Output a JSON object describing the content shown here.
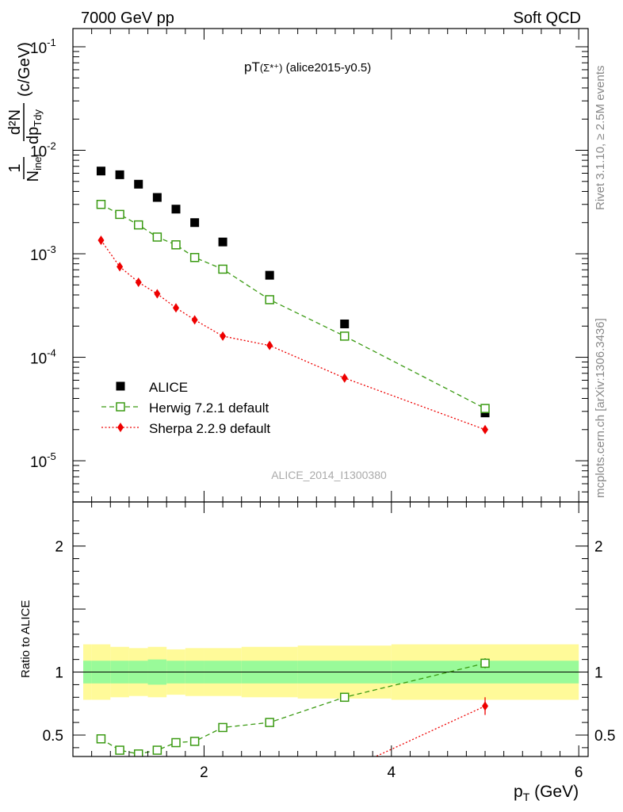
{
  "header": {
    "energy_label": "7000 GeV pp",
    "category_label": "Soft QCD",
    "plot_title_main": "pT",
    "plot_title_particle": "(Σ*⁺)",
    "plot_title_ref": " (alice2015-y0.5)",
    "rivet_label": "Rivet 3.1.10, ≥ 2.5M events",
    "mcplots_label": "mcplots.cern.ch [arXiv:1306.3436]",
    "analysis_label": "ALICE_2014_I1300380"
  },
  "axes": {
    "ylabel_num": "1",
    "ylabel_den": "N",
    "ylabel_den_sub": "inel",
    "ylabel_d2n": "d²N",
    "ylabel_dpt": "dp",
    "ylabel_dpt_sub": "Tdy",
    "ylabel_unit": "(c/GeV)",
    "ratio_ylabel": "Ratio to ALICE",
    "xlabel_main": "p",
    "xlabel_sub": "T",
    "xlabel_unit": " (GeV)"
  },
  "legend": [
    {
      "label": "ALICE",
      "color": "#000000",
      "marker": "square-filled"
    },
    {
      "label": "Herwig 7.2.1 default",
      "color": "#3a9a12",
      "marker": "square-open",
      "line": "dashed"
    },
    {
      "label": "Sherpa 2.2.9 default",
      "color": "#ee0000",
      "marker": "diamond-filled",
      "line": "dotted"
    }
  ],
  "chart_data": {
    "type": "scatter",
    "xlim": [
      0.6,
      6.1
    ],
    "xticks": [
      2,
      4,
      6
    ],
    "main": {
      "yscale": "log",
      "ylim": [
        4e-06,
        0.15
      ],
      "yticks": [
        {
          "value": 1e-05,
          "exp": "-5"
        },
        {
          "value": 0.0001,
          "exp": "-4"
        },
        {
          "value": 0.001,
          "exp": "-3"
        },
        {
          "value": 0.01,
          "exp": "-2"
        },
        {
          "value": 0.1,
          "exp": "-1"
        }
      ],
      "series": [
        {
          "name": "ALICE",
          "x": [
            0.9,
            1.1,
            1.3,
            1.5,
            1.7,
            1.9,
            2.2,
            2.7,
            3.5,
            5.0
          ],
          "y": [
            0.0063,
            0.0058,
            0.0047,
            0.0035,
            0.0027,
            0.002,
            0.0013,
            0.00062,
            0.00021,
            2.9e-05
          ]
        },
        {
          "name": "Herwig 7.2.1 default",
          "x": [
            0.9,
            1.1,
            1.3,
            1.5,
            1.7,
            1.9,
            2.2,
            2.7,
            3.5,
            5.0
          ],
          "y": [
            0.003,
            0.0024,
            0.0019,
            0.00145,
            0.00122,
            0.00092,
            0.00071,
            0.00036,
            0.00016,
            3.2e-05
          ]
        },
        {
          "name": "Sherpa 2.2.9 default",
          "x": [
            0.9,
            1.1,
            1.3,
            1.5,
            1.7,
            1.9,
            2.2,
            2.7,
            3.5,
            5.0
          ],
          "y": [
            0.00135,
            0.00075,
            0.00053,
            0.00041,
            0.0003,
            0.00023,
            0.00016,
            0.00013,
            6.3e-05,
            2e-05
          ]
        }
      ]
    },
    "ratio": {
      "yscale": "linear",
      "ylim": [
        0.33,
        2.35
      ],
      "yticks": [
        0.5,
        1,
        2
      ],
      "band_edges": [
        0.6,
        0.8,
        1.0,
        1.2,
        1.4,
        1.6,
        1.8,
        2.0,
        2.4,
        3.0,
        4.0,
        6.0
      ],
      "band_outer": [
        0.22,
        0.22,
        0.2,
        0.19,
        0.2,
        0.18,
        0.19,
        0.19,
        0.2,
        0.21,
        0.22
      ],
      "band_inner": [
        0.09,
        0.09,
        0.09,
        0.09,
        0.1,
        0.09,
        0.09,
        0.09,
        0.09,
        0.09,
        0.09
      ],
      "series": [
        {
          "name": "Herwig 7.2.1 default",
          "x": [
            0.9,
            1.1,
            1.3,
            1.5,
            1.7,
            1.9,
            2.2,
            2.7,
            3.5,
            5.0
          ],
          "y": [
            0.47,
            0.38,
            0.35,
            0.38,
            0.44,
            0.45,
            0.56,
            0.6,
            0.8,
            1.07
          ],
          "err": [
            0.01,
            0.01,
            0.01,
            0.01,
            0.02,
            0.03,
            0.02,
            0.02,
            0.03,
            0.04
          ]
        },
        {
          "name": "Sherpa 2.2.9 default",
          "x": [
            3.6,
            5.0
          ],
          "y": [
            0.25,
            0.73
          ],
          "err": [
            0,
            0.07
          ]
        }
      ],
      "band_colors": {
        "outer": "#fffa99",
        "inner": "#99fa99"
      }
    }
  }
}
